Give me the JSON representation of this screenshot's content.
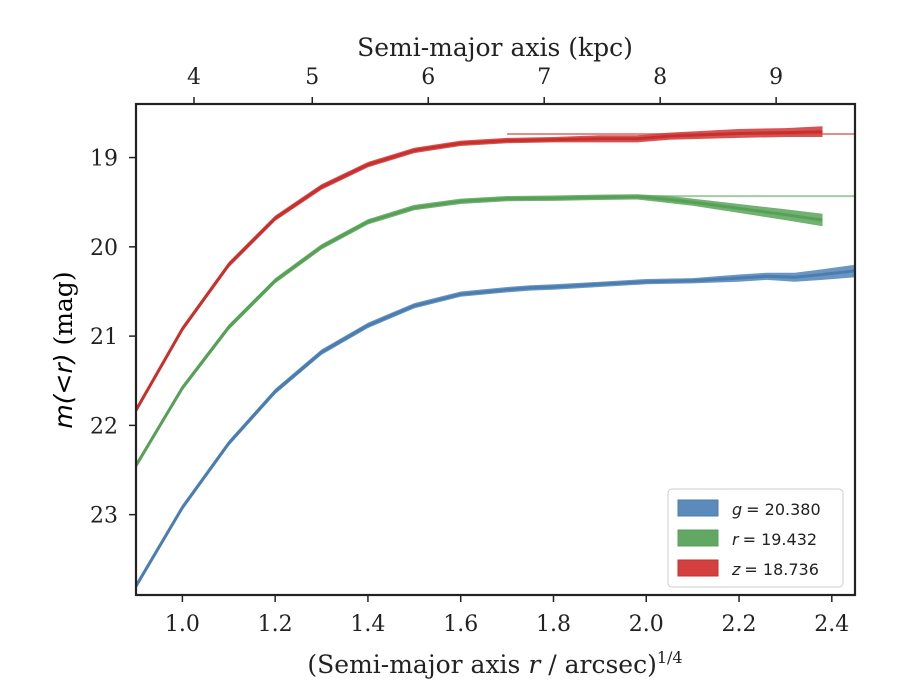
{
  "chart_data": {
    "type": "area",
    "xlabel": "(Semi-major axis r / arcsec)^{1/4}",
    "xlabel_parts": {
      "prefix": "(Semi-major axis ",
      "var": "r",
      "suffix": " / arcsec)",
      "sup": "1/4"
    },
    "ylabel": "m(<r) (mag)",
    "ylabel_parts": {
      "math": "m(<r)",
      "unit": " (mag)"
    },
    "top_xlabel": "Semi-major axis (kpc)",
    "xlim": [
      0.9,
      2.45
    ],
    "ylim": [
      23.9,
      18.4
    ],
    "y_inverted": true,
    "xticks": [
      1.0,
      1.2,
      1.4,
      1.6,
      1.8,
      2.0,
      2.2,
      2.4
    ],
    "xtick_labels": [
      "1.0",
      "1.2",
      "1.4",
      "1.6",
      "1.8",
      "2.0",
      "2.2",
      "2.4"
    ],
    "yticks": [
      19,
      20,
      21,
      22,
      23
    ],
    "ytick_labels": [
      "19",
      "20",
      "21",
      "22",
      "23"
    ],
    "top_ticks": [
      {
        "label": "4",
        "x": 1.025
      },
      {
        "label": "5",
        "x": 1.28
      },
      {
        "label": "6",
        "x": 1.53
      },
      {
        "label": "7",
        "x": 1.78
      },
      {
        "label": "8",
        "x": 2.03
      },
      {
        "label": "9",
        "x": 2.28
      }
    ],
    "grid": false,
    "legend_position": "bottom-right",
    "series": [
      {
        "name": "g = 20.380",
        "legend_var": "g",
        "legend_value": "= 20.380",
        "color": "#4a7eb0",
        "fill_color": "#5b8bbb",
        "asymptote": null,
        "points": [
          {
            "x": 0.9,
            "y": 23.8,
            "err": 0.03
          },
          {
            "x": 1.0,
            "y": 22.92,
            "err": 0.03
          },
          {
            "x": 1.1,
            "y": 22.2,
            "err": 0.03
          },
          {
            "x": 1.2,
            "y": 21.62,
            "err": 0.03
          },
          {
            "x": 1.3,
            "y": 21.18,
            "err": 0.03
          },
          {
            "x": 1.4,
            "y": 20.88,
            "err": 0.03
          },
          {
            "x": 1.5,
            "y": 20.66,
            "err": 0.03
          },
          {
            "x": 1.6,
            "y": 20.53,
            "err": 0.03
          },
          {
            "x": 1.7,
            "y": 20.48,
            "err": 0.03
          },
          {
            "x": 1.75,
            "y": 20.46,
            "err": 0.03
          },
          {
            "x": 1.8,
            "y": 20.45,
            "err": 0.03
          },
          {
            "x": 1.9,
            "y": 20.42,
            "err": 0.03
          },
          {
            "x": 2.0,
            "y": 20.39,
            "err": 0.03
          },
          {
            "x": 2.1,
            "y": 20.38,
            "err": 0.03
          },
          {
            "x": 2.2,
            "y": 20.35,
            "err": 0.04
          },
          {
            "x": 2.26,
            "y": 20.33,
            "err": 0.04
          },
          {
            "x": 2.32,
            "y": 20.34,
            "err": 0.05
          },
          {
            "x": 2.38,
            "y": 20.31,
            "err": 0.06
          },
          {
            "x": 2.45,
            "y": 20.27,
            "err": 0.07
          }
        ]
      },
      {
        "name": "r = 19.432",
        "legend_var": "r",
        "legend_value": "= 19.432",
        "color": "#57a057",
        "fill_color": "#62a862",
        "asymptote": {
          "y": 19.432,
          "x_start": 1.98
        },
        "points": [
          {
            "x": 0.9,
            "y": 22.45,
            "err": 0.03
          },
          {
            "x": 1.0,
            "y": 21.58,
            "err": 0.03
          },
          {
            "x": 1.1,
            "y": 20.9,
            "err": 0.03
          },
          {
            "x": 1.2,
            "y": 20.38,
            "err": 0.03
          },
          {
            "x": 1.3,
            "y": 20.0,
            "err": 0.03
          },
          {
            "x": 1.4,
            "y": 19.72,
            "err": 0.03
          },
          {
            "x": 1.5,
            "y": 19.56,
            "err": 0.03
          },
          {
            "x": 1.6,
            "y": 19.49,
            "err": 0.03
          },
          {
            "x": 1.7,
            "y": 19.46,
            "err": 0.03
          },
          {
            "x": 1.8,
            "y": 19.455,
            "err": 0.03
          },
          {
            "x": 1.9,
            "y": 19.445,
            "err": 0.03
          },
          {
            "x": 1.98,
            "y": 19.44,
            "err": 0.03
          },
          {
            "x": 2.05,
            "y": 19.47,
            "err": 0.04
          },
          {
            "x": 2.1,
            "y": 19.5,
            "err": 0.04
          },
          {
            "x": 2.2,
            "y": 19.57,
            "err": 0.05
          },
          {
            "x": 2.3,
            "y": 19.64,
            "err": 0.06
          },
          {
            "x": 2.38,
            "y": 19.7,
            "err": 0.07
          }
        ]
      },
      {
        "name": "z = 18.736",
        "legend_var": "z",
        "legend_value": "= 18.736",
        "color": "#c9302c",
        "fill_color": "#d24040",
        "asymptote": {
          "y": 18.736,
          "x_start": 1.7
        },
        "points": [
          {
            "x": 0.9,
            "y": 21.83,
            "err": 0.03
          },
          {
            "x": 1.0,
            "y": 20.92,
            "err": 0.03
          },
          {
            "x": 1.1,
            "y": 20.2,
            "err": 0.03
          },
          {
            "x": 1.2,
            "y": 19.68,
            "err": 0.03
          },
          {
            "x": 1.3,
            "y": 19.33,
            "err": 0.03
          },
          {
            "x": 1.4,
            "y": 19.08,
            "err": 0.03
          },
          {
            "x": 1.5,
            "y": 18.92,
            "err": 0.03
          },
          {
            "x": 1.6,
            "y": 18.84,
            "err": 0.03
          },
          {
            "x": 1.7,
            "y": 18.81,
            "err": 0.03
          },
          {
            "x": 1.8,
            "y": 18.8,
            "err": 0.03
          },
          {
            "x": 1.9,
            "y": 18.79,
            "err": 0.04
          },
          {
            "x": 1.98,
            "y": 18.79,
            "err": 0.04
          },
          {
            "x": 2.05,
            "y": 18.76,
            "err": 0.04
          },
          {
            "x": 2.2,
            "y": 18.73,
            "err": 0.05
          },
          {
            "x": 2.3,
            "y": 18.72,
            "err": 0.05
          },
          {
            "x": 2.38,
            "y": 18.71,
            "err": 0.06
          }
        ]
      }
    ]
  }
}
